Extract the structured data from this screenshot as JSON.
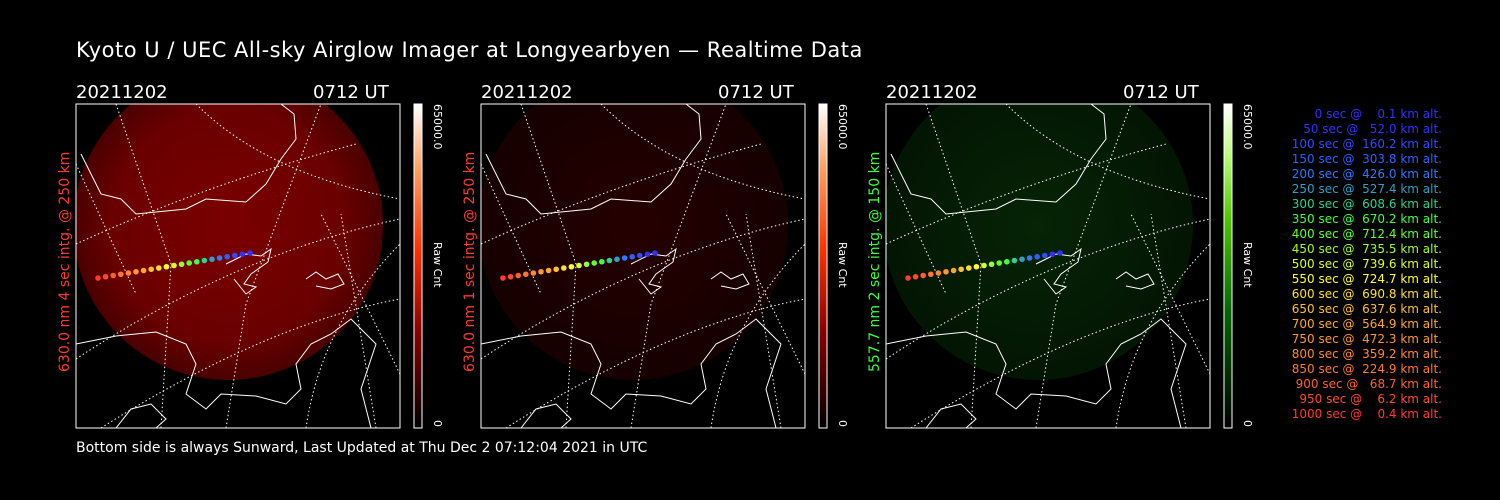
{
  "title": "Kyoto U / UEC All-sky Airglow Imager at Longyearbyen — Realtime Data",
  "panels": [
    {
      "date": "20211202",
      "time": "0712 UT",
      "ylabel": "630.0 nm 4 sec intg. @ 250 km",
      "label_color": "#ff3b2f",
      "colorbar_max": "65000.0",
      "colorbar_min": "0",
      "colorbar_unit": "Raw Cnt",
      "colormap": "red"
    },
    {
      "date": "20211202",
      "time": "0712 UT",
      "ylabel": "630.0 nm 1 sec intg. @ 250 km",
      "label_color": "#ff3b2f",
      "colorbar_max": "65000.0",
      "colorbar_min": "0",
      "colorbar_unit": "Raw Cnt",
      "colormap": "red"
    },
    {
      "date": "20211202",
      "time": "0712 UT",
      "ylabel": "557.7 nm 2 sec intg. @ 150 km",
      "label_color": "#3bff3b",
      "colorbar_max": "65000.0",
      "colorbar_min": "0",
      "colorbar_unit": "Raw Cnt",
      "colormap": "green"
    }
  ],
  "footer": "Bottom side is always Sunward, Last Updated at Thu Dec  2 07:12:04 2021 in UTC",
  "legend": [
    {
      "text": "   0 sec @    0.1 km alt.",
      "color": "#3030ff"
    },
    {
      "text": "  50 sec @   52.0 km alt.",
      "color": "#3030ff"
    },
    {
      "text": " 100 sec @  160.2 km alt.",
      "color": "#2f4cff"
    },
    {
      "text": " 150 sec @  303.8 km alt.",
      "color": "#2f60ff"
    },
    {
      "text": " 200 sec @  426.0 km alt.",
      "color": "#2f78ff"
    },
    {
      "text": " 250 sec @  527.4 km alt.",
      "color": "#2fa0c8"
    },
    {
      "text": " 300 sec @  608.6 km alt.",
      "color": "#2fd090"
    },
    {
      "text": " 350 sec @  670.2 km alt.",
      "color": "#40ff40"
    },
    {
      "text": " 400 sec @  712.4 km alt.",
      "color": "#60ff30"
    },
    {
      "text": " 450 sec @  735.5 km alt.",
      "color": "#9cff30"
    },
    {
      "text": " 500 sec @  739.6 km alt.",
      "color": "#d8ff30"
    },
    {
      "text": " 550 sec @  724.7 km alt.",
      "color": "#ffff30"
    },
    {
      "text": " 600 sec @  690.8 km alt.",
      "color": "#ffe030"
    },
    {
      "text": " 650 sec @  637.6 km alt.",
      "color": "#ffc030"
    },
    {
      "text": " 700 sec @  564.9 km alt.",
      "color": "#ffa830"
    },
    {
      "text": " 750 sec @  472.3 km alt.",
      "color": "#ff9830"
    },
    {
      "text": " 800 sec @  359.2 km alt.",
      "color": "#ff8830"
    },
    {
      "text": " 850 sec @  224.9 km alt.",
      "color": "#ff7830"
    },
    {
      "text": " 900 sec @   68.7 km alt.",
      "color": "#ff6030"
    },
    {
      "text": " 950 sec @    6.2 km alt.",
      "color": "#ff4a30"
    },
    {
      "text": "1000 sec @    0.4 km alt.",
      "color": "#ff3a30"
    }
  ]
}
